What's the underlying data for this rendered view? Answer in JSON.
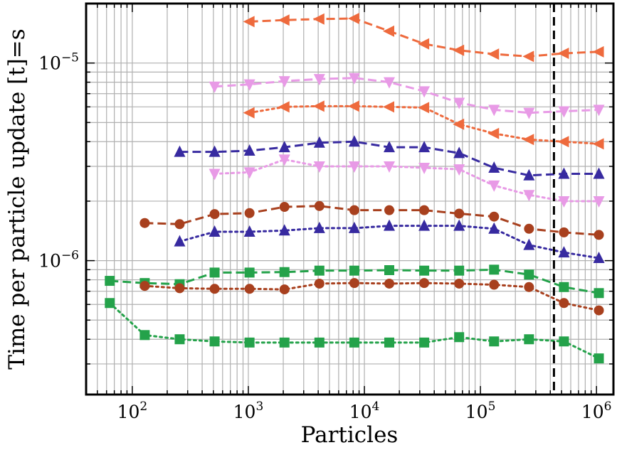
{
  "chart_data": {
    "type": "line",
    "title": "",
    "xlabel": "Particles",
    "ylabel": "Time per particle update [t]=s",
    "xscale": "log",
    "yscale": "log",
    "xlim": [
      40,
      1400000
    ],
    "ylim": [
      2.1e-07,
      2e-05
    ],
    "grid": true,
    "legend": "none",
    "x_ticks": [
      {
        "value": 100,
        "label": "10",
        "exp": "2"
      },
      {
        "value": 1000,
        "label": "10",
        "exp": "3"
      },
      {
        "value": 10000,
        "label": "10",
        "exp": "4"
      },
      {
        "value": 100000,
        "label": "10",
        "exp": "5"
      },
      {
        "value": 1000000,
        "label": "10",
        "exp": "6"
      }
    ],
    "y_ticks": [
      {
        "value": 1e-06,
        "label": "10",
        "exp": "−6"
      },
      {
        "value": 1e-05,
        "label": "10",
        "exp": "−5"
      }
    ],
    "vline": {
      "x": 430000,
      "style": "dashed",
      "color": "#000000"
    },
    "series": [
      {
        "name": "orange-left-dashed",
        "color": "#ee6a3d",
        "marker": "triangle-left",
        "line": "dashed",
        "x": [
          1024,
          2048,
          4096,
          8192,
          16384,
          32768,
          65536,
          131072,
          262144,
          524288,
          1048576
        ],
        "y": [
          1.62e-05,
          1.65e-05,
          1.67e-05,
          1.68e-05,
          1.45e-05,
          1.25e-05,
          1.16e-05,
          1.11e-05,
          1.08e-05,
          1.12e-05,
          1.14e-05
        ]
      },
      {
        "name": "pink-down-dashed",
        "color": "#e89ae6",
        "marker": "triangle-down",
        "line": "dashed",
        "x": [
          512,
          1024,
          2048,
          4096,
          8192,
          16384,
          32768,
          65536,
          131072,
          262144,
          524288,
          1048576
        ],
        "y": [
          7.6e-06,
          7.8e-06,
          8.1e-06,
          8.3e-06,
          8.4e-06,
          8e-06,
          7.2e-06,
          6.3e-06,
          5.8e-06,
          5.6e-06,
          5.7e-06,
          5.8e-06
        ]
      },
      {
        "name": "orange-left-dotted",
        "color": "#ee6a3d",
        "marker": "triangle-left",
        "line": "dotted",
        "x": [
          1024,
          2048,
          4096,
          8192,
          16384,
          32768,
          65536,
          131072,
          262144,
          524288,
          1048576
        ],
        "y": [
          5.6e-06,
          6e-06,
          6.05e-06,
          6.05e-06,
          6e-06,
          5.95e-06,
          4.9e-06,
          4.4e-06,
          4.1e-06,
          4e-06,
          3.9e-06
        ]
      },
      {
        "name": "indigo-up-dashed",
        "color": "#372aa0",
        "marker": "triangle-up",
        "line": "dashed",
        "x": [
          256,
          512,
          1024,
          2048,
          4096,
          8192,
          16384,
          32768,
          65536,
          131072,
          262144,
          524288,
          1048576
        ],
        "y": [
          3.55e-06,
          3.55e-06,
          3.6e-06,
          3.75e-06,
          3.95e-06,
          4e-06,
          3.75e-06,
          3.75e-06,
          3.5e-06,
          2.95e-06,
          2.7e-06,
          2.75e-06,
          2.75e-06
        ]
      },
      {
        "name": "pink-down-dotted",
        "color": "#e89ae6",
        "marker": "triangle-down",
        "line": "dotted",
        "x": [
          512,
          1024,
          2048,
          4096,
          8192,
          16384,
          32768,
          65536,
          131072,
          262144,
          524288,
          1048576
        ],
        "y": [
          2.75e-06,
          2.8e-06,
          3.25e-06,
          3e-06,
          3e-06,
          3e-06,
          2.95e-06,
          2.9e-06,
          2.4e-06,
          2.15e-06,
          2e-06,
          2e-06
        ]
      },
      {
        "name": "brown-circle-dashed",
        "color": "#a8401e",
        "marker": "circle",
        "line": "dashed",
        "x": [
          128,
          256,
          512,
          1024,
          2048,
          4096,
          8192,
          16384,
          32768,
          65536,
          131072,
          262144,
          524288,
          1048576
        ],
        "y": [
          1.55e-06,
          1.53e-06,
          1.72e-06,
          1.74e-06,
          1.87e-06,
          1.89e-06,
          1.8e-06,
          1.8e-06,
          1.8e-06,
          1.73e-06,
          1.67e-06,
          1.45e-06,
          1.39e-06,
          1.35e-06
        ]
      },
      {
        "name": "indigo-up-dotted",
        "color": "#372aa0",
        "marker": "triangle-up",
        "line": "dotted",
        "x": [
          256,
          512,
          1024,
          2048,
          4096,
          8192,
          16384,
          32768,
          65536,
          131072,
          262144,
          524288,
          1048576
        ],
        "y": [
          1.25e-06,
          1.4e-06,
          1.4e-06,
          1.42e-06,
          1.46e-06,
          1.46e-06,
          1.5e-06,
          1.5e-06,
          1.5e-06,
          1.45e-06,
          1.2e-06,
          1.1e-06,
          1.03e-06
        ]
      },
      {
        "name": "green-square-dashed",
        "color": "#24a24a",
        "marker": "square",
        "line": "dashed",
        "x": [
          64,
          128,
          256,
          512,
          1024,
          2048,
          4096,
          8192,
          16384,
          32768,
          65536,
          131072,
          262144,
          524288,
          1048576
        ],
        "y": [
          7.9e-07,
          7.7e-07,
          7.6e-07,
          8.7e-07,
          8.7e-07,
          8.75e-07,
          8.9e-07,
          8.9e-07,
          8.95e-07,
          8.9e-07,
          8.9e-07,
          9e-07,
          8.5e-07,
          7.35e-07,
          6.85e-07
        ]
      },
      {
        "name": "brown-circle-dotted",
        "color": "#a8401e",
        "marker": "circle",
        "line": "dotted",
        "x": [
          128,
          256,
          512,
          1024,
          2048,
          4096,
          8192,
          16384,
          32768,
          65536,
          131072,
          262144,
          524288,
          1048576
        ],
        "y": [
          7.45e-07,
          7.25e-07,
          7.2e-07,
          7.2e-07,
          7.15e-07,
          7.65e-07,
          7.7e-07,
          7.65e-07,
          7.7e-07,
          7.65e-07,
          7.55e-07,
          7.35e-07,
          6.1e-07,
          5.6e-07
        ]
      },
      {
        "name": "green-square-dotted",
        "color": "#24a24a",
        "marker": "square",
        "line": "dotted",
        "x": [
          64,
          128,
          256,
          512,
          1024,
          2048,
          4096,
          8192,
          16384,
          32768,
          65536,
          131072,
          262144,
          524288,
          1048576
        ],
        "y": [
          6.1e-07,
          4.2e-07,
          4e-07,
          3.9e-07,
          3.85e-07,
          3.85e-07,
          3.85e-07,
          3.85e-07,
          3.85e-07,
          3.85e-07,
          4.1e-07,
          3.9e-07,
          4e-07,
          3.9e-07,
          3.2e-07
        ]
      }
    ]
  }
}
